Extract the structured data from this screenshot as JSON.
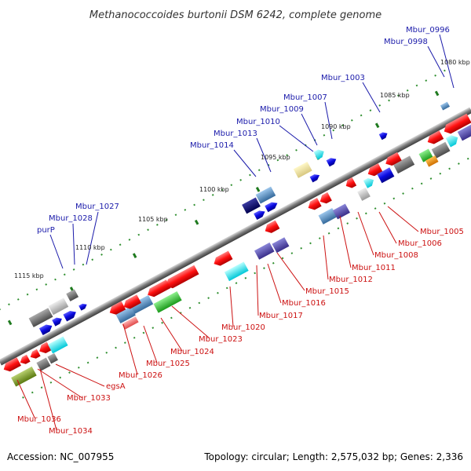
{
  "title": "Methanococcoides burtonii DSM 6242, complete genome",
  "footer": {
    "accession": "Accession: NC_007955",
    "summary": "Topology: circular; Length: 2,575,032 bp; Genes: 2,336"
  },
  "colors": {
    "label_top": "#1a1aaa",
    "label_bottom": "#cc1111",
    "line_top": "#1a1aaa",
    "line_bottom": "#cc1111",
    "backbone": "#8a8a8a",
    "dots": "#2f8f2f"
  },
  "ticks": [
    {
      "label": "1080 kbp"
    },
    {
      "label": "1085 kbp"
    },
    {
      "label": "1090 kbp"
    },
    {
      "label": "1095 kbp"
    },
    {
      "label": "1100 kbp"
    },
    {
      "label": "1105 kbp"
    },
    {
      "label": "1110 kbp"
    },
    {
      "label": "1115 kbp"
    }
  ],
  "top_labels": [
    {
      "text": "Mbur_0996"
    },
    {
      "text": "Mbur_0998"
    },
    {
      "text": "Mbur_1003"
    },
    {
      "text": "Mbur_1007"
    },
    {
      "text": "Mbur_1009"
    },
    {
      "text": "Mbur_1010"
    },
    {
      "text": "Mbur_1013"
    },
    {
      "text": "Mbur_1014"
    },
    {
      "text": "Mbur_1027"
    },
    {
      "text": "Mbur_1028"
    },
    {
      "text": "purP"
    }
  ],
  "bottom_labels": [
    {
      "text": "Mbur_1005"
    },
    {
      "text": "Mbur_1006"
    },
    {
      "text": "Mbur_1008"
    },
    {
      "text": "Mbur_1011"
    },
    {
      "text": "Mbur_1012"
    },
    {
      "text": "Mbur_1015"
    },
    {
      "text": "Mbur_1016"
    },
    {
      "text": "Mbur_1017"
    },
    {
      "text": "Mbur_1020"
    },
    {
      "text": "Mbur_1023"
    },
    {
      "text": "Mbur_1024"
    },
    {
      "text": "Mbur_1025"
    },
    {
      "text": "Mbur_1026"
    },
    {
      "text": "egsA"
    },
    {
      "text": "Mbur_1033"
    },
    {
      "text": "Mbur_1034"
    },
    {
      "text": "Mbur_1036"
    }
  ]
}
